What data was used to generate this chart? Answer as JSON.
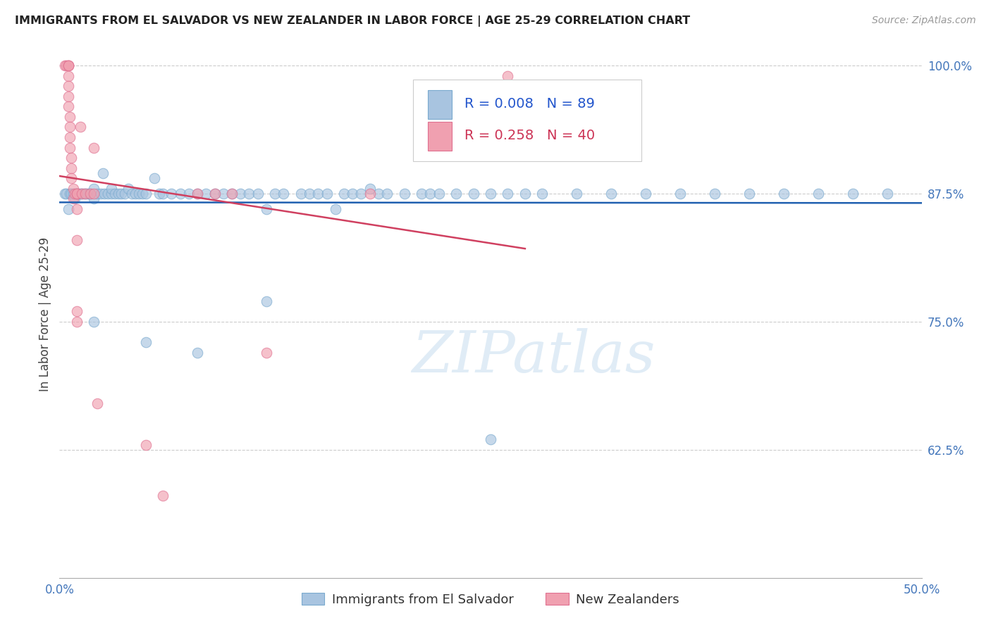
{
  "title": "IMMIGRANTS FROM EL SALVADOR VS NEW ZEALANDER IN LABOR FORCE | AGE 25-29 CORRELATION CHART",
  "source": "Source: ZipAtlas.com",
  "ylabel": "In Labor Force | Age 25-29",
  "xlim": [
    0.0,
    0.5
  ],
  "ylim": [
    0.5,
    1.015
  ],
  "blue_R": 0.008,
  "blue_N": 89,
  "pink_R": 0.258,
  "pink_N": 40,
  "blue_color": "#a8c4e0",
  "pink_color": "#f0a0b0",
  "blue_edge_color": "#7aaace",
  "pink_edge_color": "#e07090",
  "blue_line_color": "#2060b0",
  "pink_line_color": "#d04060",
  "legend_label_blue": "Immigrants from El Salvador",
  "legend_label_pink": "New Zealanders",
  "watermark": "ZIPatlas",
  "blue_x": [
    0.003,
    0.004,
    0.005,
    0.006,
    0.007,
    0.008,
    0.009,
    0.01,
    0.01,
    0.011,
    0.012,
    0.013,
    0.014,
    0.015,
    0.016,
    0.017,
    0.018,
    0.02,
    0.02,
    0.022,
    0.024,
    0.025,
    0.026,
    0.028,
    0.03,
    0.03,
    0.032,
    0.034,
    0.036,
    0.038,
    0.04,
    0.042,
    0.044,
    0.046,
    0.048,
    0.05,
    0.055,
    0.058,
    0.06,
    0.065,
    0.07,
    0.075,
    0.08,
    0.085,
    0.09,
    0.095,
    0.1,
    0.105,
    0.11,
    0.115,
    0.12,
    0.125,
    0.13,
    0.14,
    0.145,
    0.15,
    0.155,
    0.16,
    0.165,
    0.17,
    0.175,
    0.18,
    0.185,
    0.19,
    0.2,
    0.21,
    0.215,
    0.22,
    0.23,
    0.24,
    0.25,
    0.26,
    0.27,
    0.28,
    0.3,
    0.32,
    0.34,
    0.36,
    0.38,
    0.4,
    0.42,
    0.44,
    0.46,
    0.48,
    0.02,
    0.05,
    0.08,
    0.12,
    0.25
  ],
  "blue_y": [
    0.875,
    0.875,
    0.86,
    0.875,
    0.875,
    0.875,
    0.87,
    0.875,
    0.875,
    0.875,
    0.875,
    0.875,
    0.875,
    0.875,
    0.875,
    0.875,
    0.875,
    0.88,
    0.87,
    0.875,
    0.875,
    0.895,
    0.875,
    0.875,
    0.875,
    0.88,
    0.875,
    0.875,
    0.875,
    0.875,
    0.88,
    0.875,
    0.875,
    0.875,
    0.875,
    0.875,
    0.89,
    0.875,
    0.875,
    0.875,
    0.875,
    0.875,
    0.875,
    0.875,
    0.875,
    0.875,
    0.875,
    0.875,
    0.875,
    0.875,
    0.86,
    0.875,
    0.875,
    0.875,
    0.875,
    0.875,
    0.875,
    0.86,
    0.875,
    0.875,
    0.875,
    0.88,
    0.875,
    0.875,
    0.875,
    0.875,
    0.875,
    0.875,
    0.875,
    0.875,
    0.875,
    0.875,
    0.875,
    0.875,
    0.875,
    0.875,
    0.875,
    0.875,
    0.875,
    0.875,
    0.875,
    0.875,
    0.875,
    0.875,
    0.75,
    0.73,
    0.72,
    0.77,
    0.635
  ],
  "pink_x": [
    0.003,
    0.004,
    0.005,
    0.005,
    0.005,
    0.005,
    0.005,
    0.005,
    0.005,
    0.006,
    0.006,
    0.006,
    0.006,
    0.007,
    0.007,
    0.007,
    0.008,
    0.008,
    0.009,
    0.01,
    0.01,
    0.01,
    0.01,
    0.01,
    0.01,
    0.012,
    0.013,
    0.015,
    0.018,
    0.02,
    0.02,
    0.022,
    0.05,
    0.06,
    0.08,
    0.09,
    0.1,
    0.12,
    0.18,
    0.26
  ],
  "pink_y": [
    1.0,
    1.0,
    1.0,
    1.0,
    1.0,
    0.99,
    0.98,
    0.97,
    0.96,
    0.95,
    0.94,
    0.93,
    0.92,
    0.91,
    0.9,
    0.89,
    0.88,
    0.87,
    0.875,
    0.875,
    0.875,
    0.86,
    0.83,
    0.76,
    0.75,
    0.94,
    0.875,
    0.875,
    0.875,
    0.92,
    0.875,
    0.67,
    0.63,
    0.58,
    0.875,
    0.875,
    0.875,
    0.72,
    0.875,
    0.99
  ]
}
